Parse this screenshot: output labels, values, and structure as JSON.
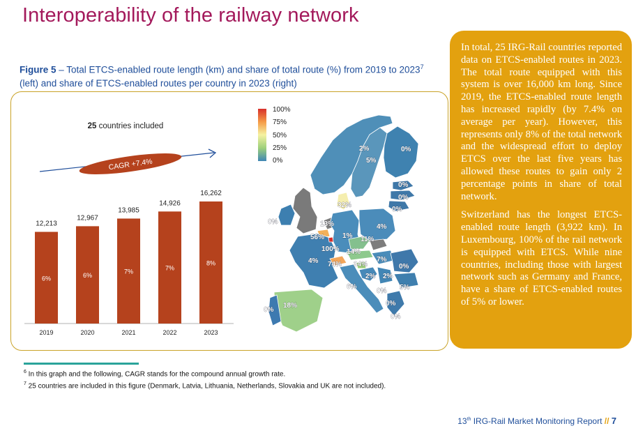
{
  "page": {
    "title": "Interoperability of the railway network",
    "figure_label": "Figure 5",
    "figure_caption": " – Total ETCS-enabled route length (km) and share of total route (%) from 2019 to 2023",
    "figure_caption_sup": "7",
    "figure_caption_tail": " (left) and share of ETCS-enabled routes per country in 2023 (right)",
    "countries_count": "25",
    "countries_text": " countries included",
    "cagr_label": "CAGR +7.4%"
  },
  "chart_data": [
    {
      "type": "bar",
      "categories": [
        "2019",
        "2020",
        "2021",
        "2022",
        "2023"
      ],
      "values": [
        12213,
        12967,
        13985,
        14926,
        16262
      ],
      "value_labels": [
        "12,213",
        "12,967",
        "13,985",
        "14,926",
        "16,262"
      ],
      "share_labels": [
        "6%",
        "6%",
        "7%",
        "7%",
        "8%"
      ],
      "ylim": [
        0,
        17000
      ],
      "bar_color": "#b5421d",
      "title": "",
      "xlabel": "",
      "ylabel": ""
    },
    {
      "type": "heatmap",
      "legend_ticks": [
        "100%",
        "75%",
        "50%",
        "25%",
        "0%"
      ],
      "legend_colors": [
        "#d7302b",
        "#f59b47",
        "#f5f2a2",
        "#9ed07b",
        "#3f86b5"
      ],
      "labels": [
        "2%",
        "0%",
        "5%",
        "0%",
        "0%",
        "0%",
        "32%",
        "0%",
        "13%",
        "1%",
        "4%",
        "56%",
        "11%",
        "100%",
        "14%",
        "4%",
        "74%",
        "34%",
        "7%",
        "0%",
        "2%",
        "2%",
        "0%",
        "5%",
        "6%",
        "0%",
        "0%",
        "0%",
        "18%"
      ]
    }
  ],
  "side_box": {
    "p1": "In total, 25 IRG-Rail countries reported data on ETCS-enabled routes in 2023. The total route equipped with this system is over 16,000 km long. Since 2019, the ETCS-enabled route length has increased rapidly (by 7.4% on average per year). However, this represents only 8% of the total network and the widespread effort to deploy ETCS over the last five years has allowed these routes to gain only 2 percentage points in share of total network.",
    "p2": "Switzerland has the longest ETCS-enabled route length (3,922 km). In Luxembourg, 100% of the rail network is equipped with ETCS. While nine countries, including those with largest network such as Germany and France, have a share of ETCS-enabled routes of 5% or lower."
  },
  "footnotes": {
    "f6_num": "6",
    "f6_text": " In this graph and the following, CAGR stands for the compound annual growth rate.",
    "f7_num": "7",
    "f7_text": " 25 countries are included in this figure (Denmark, Latvia, Lithuania, Netherlands, Slovakia and UK are not included)."
  },
  "footer": {
    "edition_num": "13",
    "edition_sup": "th",
    "report_name": " IRG-Rail Market Monitoring Report ",
    "slashes": "//",
    "page_number": "7"
  }
}
